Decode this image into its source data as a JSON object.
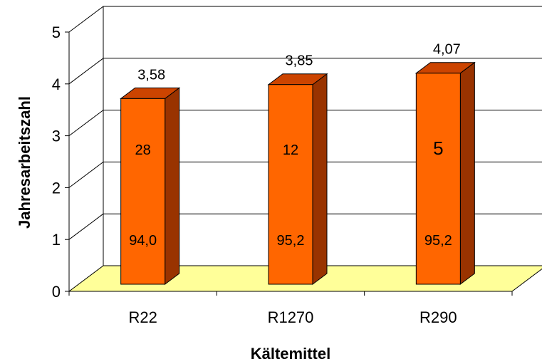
{
  "chart_data": {
    "type": "bar",
    "title": "",
    "xlabel": "Kältemittel",
    "ylabel": "Jahresarbeitszahl",
    "categories": [
      "R22",
      "R1270",
      "R290"
    ],
    "values": [
      3.58,
      3.85,
      4.07
    ],
    "value_labels": [
      "3,58",
      "3,85",
      "4,07"
    ],
    "inner_labels_middle": [
      "28",
      "12",
      "5"
    ],
    "inner_labels_bottom": [
      "94,0",
      "95,2",
      "95,2"
    ],
    "ylim": [
      0,
      5
    ],
    "yticks": [
      "0",
      "1",
      "2",
      "3",
      "4",
      "5"
    ],
    "grid": true,
    "style": "3d",
    "colors": {
      "bar_front": "#ff6600",
      "bar_top": "#cc4400",
      "bar_side": "#993300",
      "floor": "#ffff99",
      "outline": "#000000"
    }
  }
}
